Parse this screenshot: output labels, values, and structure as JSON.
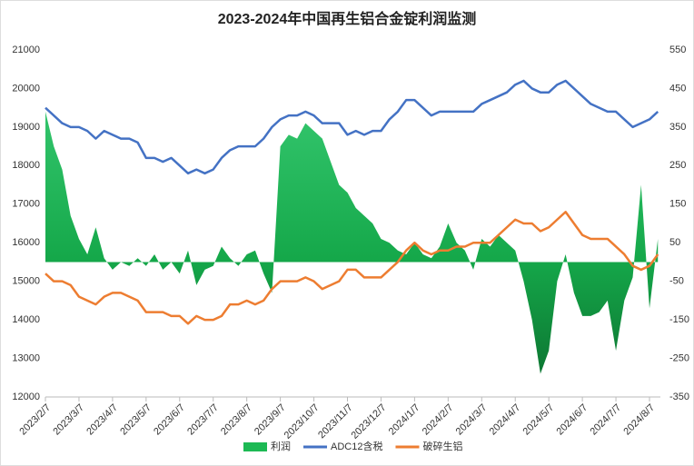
{
  "chart_data": {
    "type": "combo",
    "title": "2023-2024年中国再生铝合金锭利润监测",
    "categories": [
      "2023/2/7",
      null,
      null,
      null,
      "2023/3/7",
      null,
      null,
      null,
      "2023/4/7",
      null,
      null,
      null,
      "2023/5/7",
      null,
      null,
      null,
      "2023/6/7",
      null,
      null,
      null,
      "2023/7/7",
      null,
      null,
      null,
      "2023/8/7",
      null,
      null,
      null,
      "2023/9/7",
      null,
      null,
      null,
      "2023/10/7",
      null,
      null,
      null,
      "2023/11/7",
      null,
      null,
      null,
      "2023/12/7",
      null,
      null,
      null,
      "2024/1/7",
      null,
      null,
      null,
      "2024/2/7",
      null,
      null,
      null,
      "2024/3/7",
      null,
      null,
      null,
      "2024/4/7",
      null,
      null,
      null,
      "2024/5/7",
      null,
      null,
      null,
      "2024/6/7",
      null,
      null,
      null,
      "2024/7/7",
      null,
      null,
      null,
      "2024/8/7",
      null
    ],
    "series": [
      {
        "name": "利润",
        "kind": "area",
        "axis": "y2",
        "color": "#1db954",
        "values": [
          390,
          300,
          240,
          120,
          60,
          20,
          90,
          10,
          -20,
          0,
          -10,
          10,
          -10,
          20,
          -20,
          0,
          -30,
          30,
          -60,
          -20,
          -10,
          40,
          10,
          -10,
          20,
          30,
          -30,
          -80,
          300,
          330,
          320,
          360,
          340,
          320,
          260,
          200,
          180,
          140,
          120,
          100,
          60,
          50,
          30,
          20,
          50,
          20,
          10,
          40,
          100,
          50,
          30,
          -20,
          60,
          40,
          70,
          50,
          30,
          -50,
          -150,
          -290,
          -230,
          -50,
          20,
          -80,
          -140,
          -140,
          -130,
          -100,
          -230,
          -100,
          -40,
          200,
          -120,
          60
        ]
      },
      {
        "name": "ADC12含税",
        "kind": "line",
        "color": "#4472c4",
        "values": [
          19500,
          19300,
          19100,
          19000,
          19000,
          18900,
          18700,
          18900,
          18800,
          18700,
          18700,
          18600,
          18200,
          18200,
          18100,
          18200,
          18000,
          17800,
          17900,
          17800,
          17900,
          18200,
          18400,
          18500,
          18500,
          18500,
          18700,
          19000,
          19200,
          19300,
          19300,
          19400,
          19300,
          19100,
          19100,
          19100,
          18800,
          18900,
          18800,
          18900,
          18900,
          19200,
          19400,
          19700,
          19700,
          19500,
          19300,
          19400,
          19400,
          19400,
          19400,
          19400,
          19600,
          19700,
          19800,
          19900,
          20100,
          20200,
          20000,
          19900,
          19900,
          20100,
          20200,
          20000,
          19800,
          19600,
          19500,
          19400,
          19400,
          19200,
          19000,
          19100,
          19200,
          19400
        ]
      },
      {
        "name": "破碎生铝",
        "kind": "line",
        "color": "#ed7d31",
        "values": [
          15200,
          15000,
          15000,
          14900,
          14600,
          14500,
          14400,
          14600,
          14700,
          14700,
          14600,
          14500,
          14200,
          14200,
          14200,
          14100,
          14100,
          13900,
          14100,
          14000,
          14000,
          14100,
          14400,
          14400,
          14500,
          14400,
          14500,
          14800,
          15000,
          15000,
          15000,
          15100,
          15000,
          14800,
          14900,
          15000,
          15300,
          15300,
          15100,
          15100,
          15100,
          15300,
          15500,
          15800,
          16000,
          15800,
          15700,
          15800,
          15800,
          15900,
          15900,
          16000,
          16000,
          16000,
          16200,
          16400,
          16600,
          16500,
          16500,
          16300,
          16400,
          16600,
          16800,
          16500,
          16200,
          16100,
          16100,
          16100,
          15900,
          15700,
          15400,
          15300,
          15400,
          15700
        ]
      }
    ],
    "ylim": [
      12000,
      21000
    ],
    "yticks": [
      12000,
      13000,
      14000,
      15000,
      16000,
      17000,
      18000,
      19000,
      20000,
      21000
    ],
    "y2lim": [
      -350,
      550
    ],
    "y2ticks": [
      -350,
      -250,
      -150,
      -50,
      50,
      150,
      250,
      350,
      450,
      550
    ],
    "legend": "bottom"
  }
}
